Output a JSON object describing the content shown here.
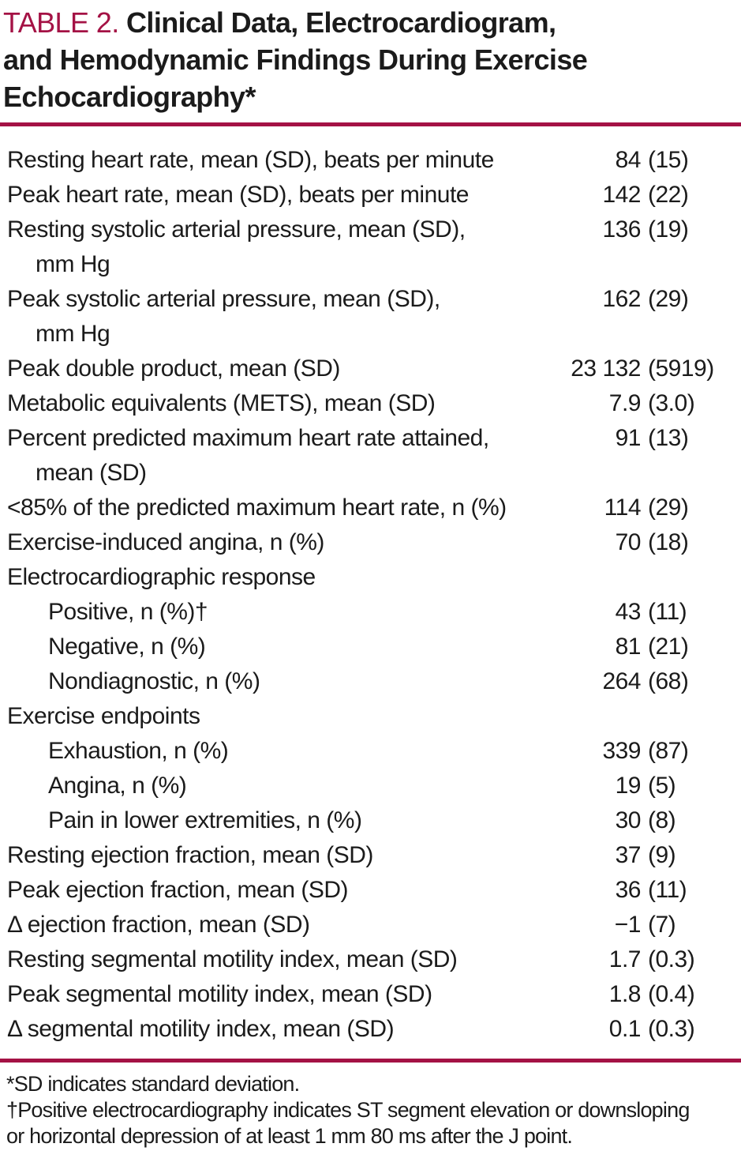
{
  "colors": {
    "accent_red": "#a41245",
    "text": "#1b1b1b",
    "background": "#ffffff"
  },
  "table": {
    "tag": "TABLE 2.",
    "title_lines": [
      "Clinical Data, Electrocardiogram,",
      "and Hemodynamic Findings During Exercise",
      "Echocardiography*"
    ],
    "rows": [
      {
        "label": "Resting heart rate, mean (SD), beats per minute",
        "num": "84",
        "sd": "(15)"
      },
      {
        "label": "Peak heart rate, mean (SD), beats per minute",
        "num": "142",
        "sd": "(22)"
      },
      {
        "label": "Resting systolic arterial pressure, mean (SD),",
        "cont": "mm Hg",
        "num": "136",
        "sd": "(19)"
      },
      {
        "label": "Peak systolic arterial pressure, mean (SD),",
        "cont": "mm Hg",
        "num": "162",
        "sd": "(29)"
      },
      {
        "label": "Peak double product, mean (SD)",
        "num": "23 132",
        "sd": "(5919)"
      },
      {
        "label": "Metabolic equivalents (METS), mean (SD)",
        "num": "7.9",
        "sd": "(3.0)"
      },
      {
        "label": "Percent predicted maximum heart rate attained,",
        "cont": "mean (SD)",
        "num": "91",
        "sd": "(13)"
      },
      {
        "label": "<85% of the predicted maximum heart rate, n (%)",
        "num": "114",
        "sd": "(29)"
      },
      {
        "label": "Exercise-induced angina, n (%)",
        "num": "70",
        "sd": "(18)"
      },
      {
        "label": "Electrocardiographic response",
        "header": true
      },
      {
        "label": "Positive, n (%)†",
        "indent": true,
        "num": "43",
        "sd": "(11)"
      },
      {
        "label": "Negative, n (%)",
        "indent": true,
        "num": "81",
        "sd": "(21)"
      },
      {
        "label": "Nondiagnostic, n (%)",
        "indent": true,
        "num": "264",
        "sd": "(68)"
      },
      {
        "label": "Exercise endpoints",
        "header": true
      },
      {
        "label": "Exhaustion, n (%)",
        "indent": true,
        "num": "339",
        "sd": "(87)"
      },
      {
        "label": "Angina, n (%)",
        "indent": true,
        "num": "19",
        "sd": "(5)"
      },
      {
        "label": "Pain in lower extremities, n (%)",
        "indent": true,
        "num": "30",
        "sd": "(8)"
      },
      {
        "label": "Resting ejection fraction, mean (SD)",
        "num": "37",
        "sd": "(9)"
      },
      {
        "label": "Peak ejection fraction, mean (SD)",
        "num": "36",
        "sd": "(11)"
      },
      {
        "label": "Δ ejection fraction, mean (SD)",
        "num": "−1",
        "sd": "(7)"
      },
      {
        "label": "Resting segmental motility index, mean (SD)",
        "num": "1.7",
        "sd": "(0.3)"
      },
      {
        "label": "Peak segmental motility index, mean (SD)",
        "num": "1.8",
        "sd": "(0.4)"
      },
      {
        "label": "Δ segmental motility index, mean (SD)",
        "num": "0.1",
        "sd": "(0.3)"
      }
    ],
    "footnote_lines": [
      "*SD indicates standard deviation.",
      "†Positive electrocardiography indicates ST segment elevation or downsloping",
      "or horizontal depression of at least 1 mm 80 ms after the J point."
    ]
  }
}
